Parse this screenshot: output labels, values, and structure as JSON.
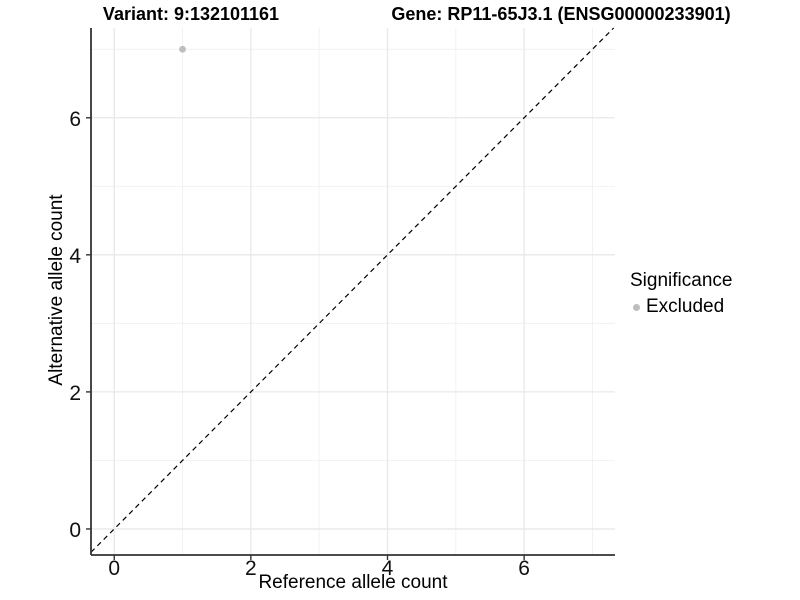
{
  "titles": {
    "variant": "Variant: 9:132101161",
    "gene": "Gene: RP11-65J3.1 (ENSG00000233901)"
  },
  "axes": {
    "x": {
      "label": "Reference allele count"
    },
    "y": {
      "label": "Alternative allele count"
    }
  },
  "legend": {
    "title": "Significance",
    "items": [
      {
        "label": "Excluded",
        "color": "#bdbdbd"
      }
    ]
  },
  "colors": {
    "point": "#bdbdbd",
    "grid_major": "#e8e8e8",
    "grid_minor": "#f1f1f1",
    "axis_line": "#333333",
    "tick": "#333333",
    "tick_label": "#111111",
    "reference_line": "#000000"
  },
  "chart_data": {
    "type": "scatter",
    "title": "Variant: 9:132101161   Gene: RP11-65J3.1 (ENSG00000233901)",
    "xlabel": "Reference allele count",
    "ylabel": "Alternative allele count",
    "xlim": [
      -0.34,
      7.33
    ],
    "ylim": [
      -0.38,
      7.31
    ],
    "x_ticks": [
      0,
      2,
      4,
      6
    ],
    "y_ticks": [
      0,
      2,
      4,
      6
    ],
    "x_minor": [
      1,
      3,
      5,
      7
    ],
    "y_minor": [
      1,
      3,
      5,
      7
    ],
    "grid": true,
    "legend_position": "right",
    "series": [
      {
        "name": "Excluded",
        "color": "#bdbdbd",
        "points": [
          {
            "x": 1,
            "y": 7
          }
        ]
      }
    ],
    "reference_line": {
      "style": "dashed",
      "equation": "y = x"
    }
  }
}
